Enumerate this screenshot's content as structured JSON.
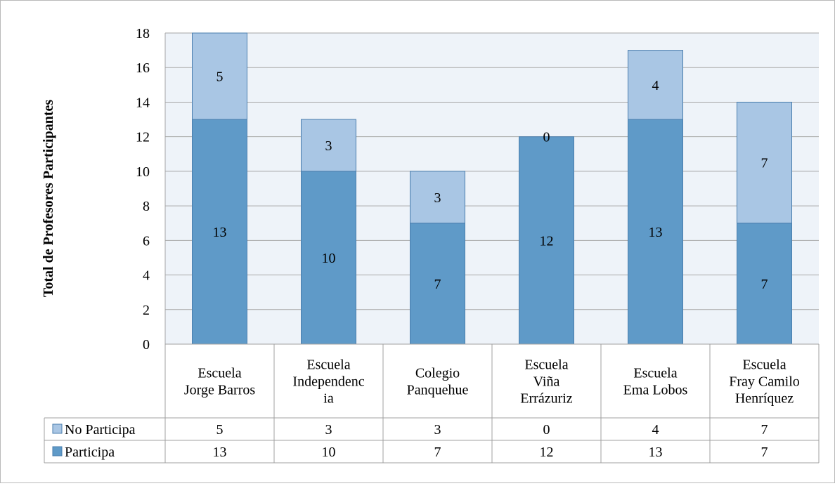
{
  "chart_data": {
    "type": "bar",
    "stacked": true,
    "ylabel": "Total de Profesores Participantes",
    "xlabel": "",
    "ylim": [
      0,
      18
    ],
    "yticks": [
      0,
      2,
      4,
      6,
      8,
      10,
      12,
      14,
      16,
      18
    ],
    "grid": true,
    "legend": "data-table-left",
    "categories": [
      [
        "Escuela",
        "Jorge Barros"
      ],
      [
        "Escuela",
        "Independenc",
        "ia"
      ],
      [
        "Colegio",
        "Panquehue"
      ],
      [
        "Escuela",
        "Viña",
        "Errázuriz"
      ],
      [
        "Escuela",
        "Ema Lobos"
      ],
      [
        "Escuela",
        "Fray Camilo",
        "Henríquez"
      ]
    ],
    "series": [
      {
        "name": "Participa",
        "values": [
          13,
          10,
          7,
          12,
          13,
          7
        ],
        "color": "#5f9ac8"
      },
      {
        "name": "No Participa",
        "values": [
          5,
          3,
          3,
          0,
          4,
          7
        ],
        "color": "#a9c6e4"
      }
    ],
    "table_rows": [
      "No Participa",
      "Participa"
    ]
  },
  "colors": {
    "plot_bg": "#eef3f9",
    "grid": "#a6a6a6",
    "bar_stroke": "#4a7eae",
    "table_border": "#a0a0a0"
  }
}
